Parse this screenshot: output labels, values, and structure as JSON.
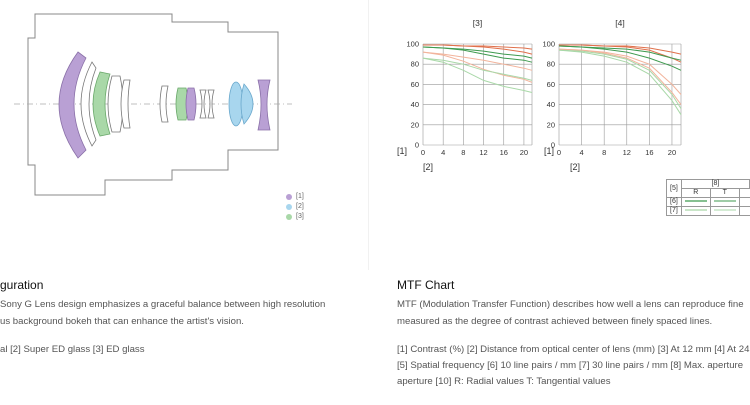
{
  "legend": [
    {
      "label": "[1]",
      "color": "#b9a0d4"
    },
    {
      "label": "[2]",
      "color": "#a8d6ee"
    },
    {
      "label": "[3]",
      "color": "#a9d8a8"
    }
  ],
  "left": {
    "title": "guration",
    "lines": [
      "Sony G Lens design emphasizes a graceful balance between high resolution",
      "us background bokeh that can enhance the artist's vision.",
      "",
      "al [2] Super ED glass [3] ED glass"
    ]
  },
  "right": {
    "title": "MTF Chart",
    "lines": [
      "MTF (Modulation Transfer Function) describes how well a lens can reproduce fine",
      "measured as the degree of contrast achieved between finely spaced lines.",
      "",
      "[1] Contrast (%) [2] Distance from optical center of lens (mm) [3] At 12 mm [4] At 24",
      "[5] Spatial frequency [6] 10 line pairs / mm [7] 30 line pairs / mm [8] Max. aperture",
      "aperture [10] R: Radial values T: Tangential values"
    ]
  },
  "mtf_labels": {
    "contrast": "[1]",
    "distance": "[2]"
  },
  "key_table": {
    "freq_label": "[5]",
    "aperture_label": "[8]",
    "radial": "R",
    "tangential": "T",
    "row10": "[6]",
    "row30": "[7]"
  },
  "chart_data": [
    {
      "type": "line",
      "title": "[3]",
      "xlabel": "",
      "ylabel": "",
      "xlim": [
        0,
        21.6
      ],
      "ylim": [
        0,
        100
      ],
      "x_ticks": [
        0,
        4,
        8,
        12,
        16,
        20
      ],
      "y_ticks": [
        0,
        20,
        40,
        60,
        80,
        100
      ],
      "grid": true,
      "series": [
        {
          "color": "#e0714c",
          "x": [
            0,
            4,
            8,
            12,
            16,
            20,
            21.6
          ],
          "y": [
            99,
            99,
            98,
            98,
            97,
            96,
            95
          ]
        },
        {
          "color": "#e0714c",
          "x": [
            0,
            4,
            8,
            12,
            16,
            20,
            21.6
          ],
          "y": [
            99,
            99,
            98,
            97,
            95,
            92,
            90
          ]
        },
        {
          "color": "#3f9a4f",
          "x": [
            0,
            4,
            8,
            12,
            16,
            20,
            21.6
          ],
          "y": [
            97,
            96,
            95,
            93,
            90,
            88,
            86
          ]
        },
        {
          "color": "#3f9a4f",
          "x": [
            0,
            4,
            8,
            12,
            16,
            20,
            21.6
          ],
          "y": [
            97,
            96,
            94,
            90,
            86,
            84,
            82
          ]
        },
        {
          "color": "#f2b49c",
          "x": [
            0,
            4,
            8,
            12,
            16,
            20,
            21.6
          ],
          "y": [
            92,
            90,
            87,
            84,
            80,
            76,
            74
          ]
        },
        {
          "color": "#f2b49c",
          "x": [
            0,
            4,
            8,
            12,
            16,
            20,
            21.6
          ],
          "y": [
            92,
            89,
            83,
            75,
            69,
            65,
            62
          ]
        },
        {
          "color": "#a9d8a8",
          "x": [
            0,
            4,
            8,
            12,
            16,
            20,
            21.6
          ],
          "y": [
            86,
            84,
            80,
            74,
            70,
            66,
            64
          ]
        },
        {
          "color": "#a9d8a8",
          "x": [
            0,
            4,
            8,
            12,
            16,
            20,
            21.6
          ],
          "y": [
            86,
            82,
            74,
            64,
            58,
            54,
            52
          ]
        }
      ]
    },
    {
      "type": "line",
      "title": "[4]",
      "xlabel": "",
      "ylabel": "",
      "xlim": [
        0,
        21.6
      ],
      "ylim": [
        0,
        100
      ],
      "x_ticks": [
        0,
        4,
        8,
        12,
        16,
        20
      ],
      "y_ticks": [
        0,
        20,
        40,
        60,
        80,
        100
      ],
      "grid": true,
      "series": [
        {
          "color": "#e0714c",
          "x": [
            0,
            4,
            8,
            12,
            16,
            20,
            21.6
          ],
          "y": [
            99,
            99,
            98,
            98,
            96,
            92,
            90
          ]
        },
        {
          "color": "#e0714c",
          "x": [
            0,
            4,
            8,
            12,
            16,
            20,
            21.6
          ],
          "y": [
            99,
            99,
            98,
            97,
            94,
            86,
            82
          ]
        },
        {
          "color": "#3f9a4f",
          "x": [
            0,
            4,
            8,
            12,
            16,
            20,
            21.6
          ],
          "y": [
            98,
            97,
            96,
            95,
            92,
            86,
            84
          ]
        },
        {
          "color": "#3f9a4f",
          "x": [
            0,
            4,
            8,
            12,
            16,
            20,
            21.6
          ],
          "y": [
            98,
            97,
            95,
            92,
            86,
            78,
            74
          ]
        },
        {
          "color": "#f2b49c",
          "x": [
            0,
            4,
            8,
            12,
            16,
            20,
            21.6
          ],
          "y": [
            95,
            94,
            92,
            88,
            80,
            60,
            50
          ]
        },
        {
          "color": "#f2b49c",
          "x": [
            0,
            4,
            8,
            12,
            16,
            20,
            21.6
          ],
          "y": [
            95,
            94,
            91,
            86,
            76,
            52,
            40
          ]
        },
        {
          "color": "#a9d8a8",
          "x": [
            0,
            4,
            8,
            12,
            16,
            20,
            21.6
          ],
          "y": [
            94,
            93,
            90,
            85,
            74,
            50,
            36
          ]
        },
        {
          "color": "#a9d8a8",
          "x": [
            0,
            4,
            8,
            12,
            16,
            20,
            21.6
          ],
          "y": [
            94,
            92,
            88,
            82,
            70,
            44,
            30
          ]
        }
      ]
    }
  ]
}
